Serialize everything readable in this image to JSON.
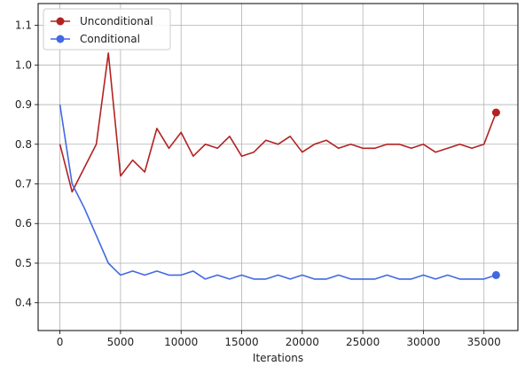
{
  "chart_data": {
    "type": "line",
    "title": "",
    "xlabel": "Iterations",
    "ylabel": "",
    "xlim": [
      -1800,
      37800
    ],
    "ylim": [
      0.33,
      1.155
    ],
    "xticks": [
      0,
      5000,
      10000,
      15000,
      20000,
      25000,
      30000,
      35000
    ],
    "xtick_labels": [
      "0",
      "5000",
      "10000",
      "15000",
      "20000",
      "25000",
      "30000",
      "35000"
    ],
    "yticks": [
      0.4,
      0.5,
      0.6,
      0.7,
      0.8,
      0.9,
      1.0,
      1.1
    ],
    "ytick_labels": [
      "0.4",
      "0.5",
      "0.6",
      "0.7",
      "0.8",
      "0.9",
      "1.0",
      "1.1"
    ],
    "grid": true,
    "legend_position": "top-left",
    "series": [
      {
        "name": "Unconditional",
        "color": "#b22222",
        "end_marker": true,
        "x": [
          0,
          1000,
          2000,
          3000,
          4000,
          5000,
          6000,
          7000,
          8000,
          9000,
          10000,
          11000,
          12000,
          13000,
          14000,
          15000,
          16000,
          17000,
          18000,
          19000,
          20000,
          21000,
          22000,
          23000,
          24000,
          25000,
          26000,
          27000,
          28000,
          29000,
          30000,
          31000,
          32000,
          33000,
          34000,
          35000,
          36000
        ],
        "y": [
          0.8,
          0.68,
          0.74,
          0.8,
          1.03,
          0.72,
          0.76,
          0.73,
          0.84,
          0.79,
          0.83,
          0.77,
          0.8,
          0.79,
          0.82,
          0.77,
          0.78,
          0.81,
          0.8,
          0.82,
          0.78,
          0.8,
          0.81,
          0.79,
          0.8,
          0.79,
          0.79,
          0.8,
          0.8,
          0.79,
          0.8,
          0.78,
          0.79,
          0.8,
          0.79,
          0.8,
          0.88
        ]
      },
      {
        "name": "Conditional",
        "color": "#4169e1",
        "end_marker": true,
        "x": [
          0,
          1000,
          2000,
          3000,
          4000,
          5000,
          6000,
          7000,
          8000,
          9000,
          10000,
          11000,
          12000,
          13000,
          14000,
          15000,
          16000,
          17000,
          18000,
          19000,
          20000,
          21000,
          22000,
          23000,
          24000,
          25000,
          26000,
          27000,
          28000,
          29000,
          30000,
          31000,
          32000,
          33000,
          34000,
          35000,
          36000
        ],
        "y": [
          0.9,
          0.7,
          0.64,
          0.57,
          0.5,
          0.47,
          0.48,
          0.47,
          0.48,
          0.47,
          0.47,
          0.48,
          0.46,
          0.47,
          0.46,
          0.47,
          0.46,
          0.46,
          0.47,
          0.46,
          0.47,
          0.46,
          0.46,
          0.47,
          0.46,
          0.46,
          0.46,
          0.47,
          0.46,
          0.46,
          0.47,
          0.46,
          0.47,
          0.46,
          0.46,
          0.46,
          0.47
        ]
      }
    ]
  }
}
